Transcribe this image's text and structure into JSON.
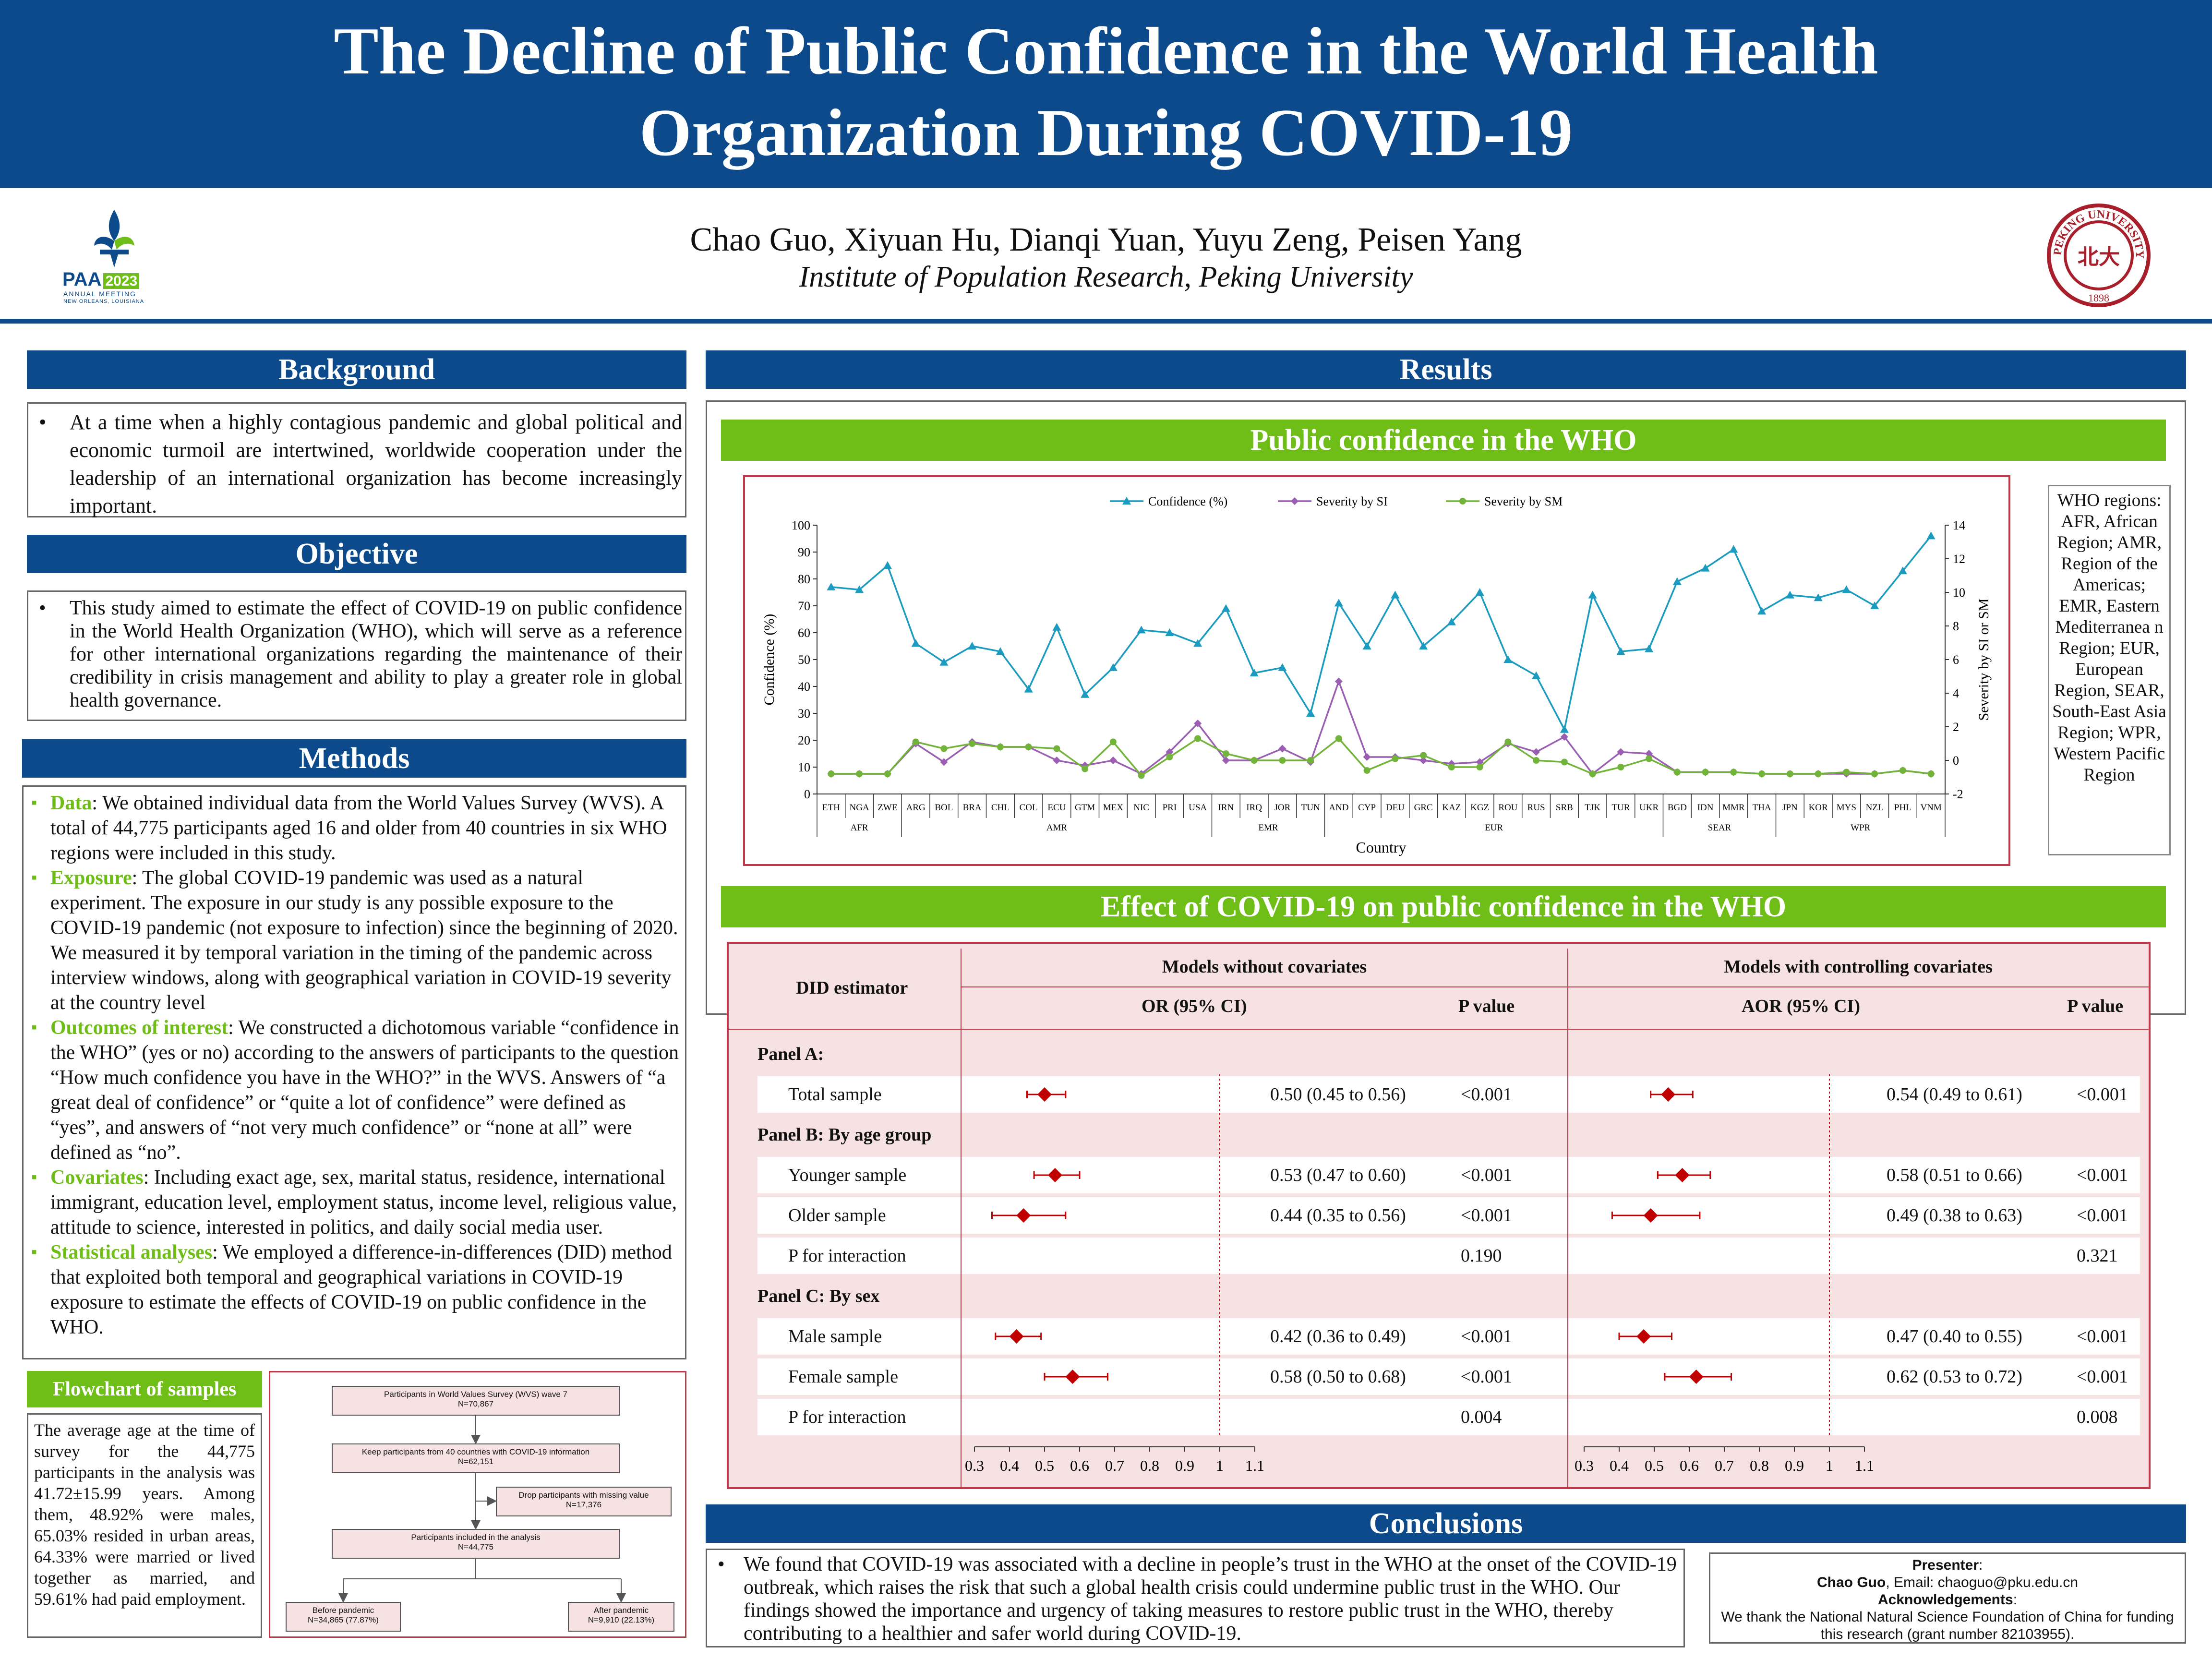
{
  "header": {
    "title_line1": "The Decline of Public Confidence in the World Health",
    "title_line2": "Organization During COVID-19",
    "authors": "Chao Guo, Xiyuan Hu, Dianqi Yuan, Yuyu Zeng, Peisen Yang",
    "affiliation": "Institute of Population Research, Peking University",
    "left_logo": {
      "line1": "PAA",
      "year": "2023",
      "line2": "ANNUAL MEETING",
      "line3": "NEW ORLEANS, LOUISIANA"
    },
    "right_logo": {
      "text": "PEKING UNIVERSITY",
      "year": "1898",
      "glyph": "北大"
    }
  },
  "background": {
    "heading": "Background",
    "text": "At a time when a highly contagious pandemic and global political and economic turmoil are intertwined, worldwide cooperation under the leadership of an international organization has become increasingly important."
  },
  "objective": {
    "heading": "Objective",
    "text": "This study aimed to estimate the effect of COVID-19 on public confidence in the World Health Organization (WHO), which will serve as a reference for other international organizations regarding the maintenance of their credibility in crisis management and ability to play a greater role in global health governance."
  },
  "methods": {
    "heading": "Methods",
    "items": [
      {
        "label": "Data",
        "text": ": We obtained individual data from the World Values Survey (WVS). A total of 44,775 participants aged 16 and older from 40 countries in six WHO regions were included in this study."
      },
      {
        "label": "Exposure",
        "text": ": The global COVID-19 pandemic was used as a natural experiment. The exposure in our study is any possible exposure to the COVID-19 pandemic (not exposure to infection) since the beginning of 2020. We measured it by temporal variation in the timing of the pandemic across interview windows, along with geographical variation in COVID-19 severity at the country level"
      },
      {
        "label": "Outcomes of interest",
        "text": ": We constructed a dichotomous variable “confidence in the WHO” (yes or no) according to the answers of participants to the question “How much confidence you have in the WHO?” in the WVS. Answers of “a great deal of confidence” or “quite a lot of confidence” were defined as “yes”, and answers of “not very much confidence” or “none at all” were defined as “no”."
      },
      {
        "label": "Covariates",
        "text": ": Including exact age, sex, marital status, residence, international immigrant, education level, employment status, income level, religious value, attitude to science, interested in politics, and daily social media user."
      },
      {
        "label": "Statistical analyses",
        "text": ": We employed a difference-in-differences (DID) method that exploited both temporal and geographical variations in COVID-19 exposure to estimate the effects of COVID-19 on public confidence in the WHO."
      }
    ]
  },
  "flowchart": {
    "heading": "Flowchart of samples",
    "summary": "The average age at the time of survey for the 44,775 participants in the analysis was 41.72±15.99 years. Among them, 48.92% were males, 65.03% resided in urban areas, 64.33% were married or lived together as married, and 59.61% had paid employment.",
    "box1_a": "Participants in World Values Survey (WVS) wave 7",
    "box1_b": "N=70,867",
    "box2_a": "Keep participants from 40 countries with COVID-19 information",
    "box2_b": "N=62,151",
    "box3_a": "Drop participants with missing value",
    "box3_b": "N=17,376",
    "box4_a": "Participants included in the analysis",
    "box4_b": "N=44,775",
    "box5_a": "Before pandemic",
    "box5_b": "N=34,865 (77.87%)",
    "box6_a": "After pandemic",
    "box6_b": "N=9,910 (22.13%)"
  },
  "results": {
    "heading": "Results",
    "sub1": "Public confidence in the WHO",
    "sub2": "Effect of COVID-19 on public confidence in the WHO",
    "who_regions_note": "WHO regions: AFR, African Region; AMR, Region of the Americas; EMR, Eastern Mediterranea n Region; EUR, European Region, SEAR, South-East Asia Region; WPR, Western Pacific Region"
  },
  "chart_data": {
    "type": "line",
    "xlabel": "Country",
    "ylabel": "Confidence (%)",
    "y2label": "Severity by SI or SM",
    "ylim": [
      0,
      100
    ],
    "y2lim": [
      -2,
      14
    ],
    "yticks": [
      0,
      10,
      20,
      30,
      40,
      50,
      60,
      70,
      80,
      90,
      100
    ],
    "y2ticks": [
      -2,
      0,
      2,
      4,
      6,
      8,
      10,
      12,
      14
    ],
    "legend_position": "top",
    "colors": {
      "confidence": "#1b9bc0",
      "si": "#9a5fb3",
      "sm": "#72b33a"
    },
    "categories": [
      "ETH",
      "NGA",
      "ZWE",
      "ARG",
      "BOL",
      "BRA",
      "CHL",
      "COL",
      "ECU",
      "GTM",
      "MEX",
      "NIC",
      "PRI",
      "USA",
      "IRN",
      "IRQ",
      "JOR",
      "TUN",
      "AND",
      "CYP",
      "DEU",
      "GRC",
      "KAZ",
      "KGZ",
      "ROU",
      "RUS",
      "SRB",
      "TJK",
      "TUR",
      "UKR",
      "BGD",
      "IDN",
      "MMR",
      "THA",
      "JPN",
      "KOR",
      "MYS",
      "NZL",
      "PHL",
      "VNM"
    ],
    "groups": [
      {
        "name": "AFR",
        "count": 3
      },
      {
        "name": "AMR",
        "count": 11
      },
      {
        "name": "EMR",
        "count": 4
      },
      {
        "name": "EUR",
        "count": 12
      },
      {
        "name": "SEAR",
        "count": 4
      },
      {
        "name": "WPR",
        "count": 6
      }
    ],
    "series": [
      {
        "name": "Confidence (%)",
        "axis": "left",
        "values": [
          77,
          76,
          85,
          56,
          49,
          55,
          53,
          39,
          62,
          37,
          47,
          61,
          60,
          56,
          69,
          45,
          47,
          30,
          71,
          55,
          74,
          55,
          64,
          75,
          50,
          44,
          24,
          74,
          53,
          54,
          79,
          84,
          91,
          68,
          74,
          73,
          76,
          70,
          83,
          96
        ]
      },
      {
        "name": "Severity by SI",
        "axis": "right",
        "values": [
          -0.8,
          -0.8,
          -0.8,
          1.0,
          -0.1,
          1.1,
          0.8,
          0.8,
          0.0,
          -0.3,
          0.0,
          -0.8,
          0.5,
          2.2,
          0.0,
          0.0,
          0.7,
          -0.1,
          4.7,
          0.2,
          0.2,
          0.0,
          -0.2,
          -0.1,
          1.0,
          0.5,
          1.4,
          -0.8,
          0.5,
          0.4,
          -0.7,
          -0.7,
          -0.7,
          -0.8,
          -0.8,
          -0.8,
          -0.8,
          -0.8,
          -0.6,
          -0.8
        ]
      },
      {
        "name": "Severity by SM",
        "axis": "right",
        "values": [
          -0.8,
          -0.8,
          -0.8,
          1.1,
          0.7,
          1.0,
          0.8,
          0.8,
          0.7,
          -0.5,
          1.1,
          -0.9,
          0.2,
          1.3,
          0.4,
          0.0,
          0.0,
          0.0,
          1.3,
          -0.6,
          0.1,
          0.3,
          -0.4,
          -0.4,
          1.1,
          0.0,
          -0.1,
          -0.8,
          -0.4,
          0.1,
          -0.7,
          -0.7,
          -0.7,
          -0.8,
          -0.8,
          -0.8,
          -0.7,
          -0.8,
          -0.6,
          -0.8
        ]
      }
    ]
  },
  "did_table": {
    "col_estimator": "DID estimator",
    "group1": "Models without covariates",
    "group2": "Models with controlling covariates",
    "col_or": "OR (95% CI)",
    "col_aor": "AOR (95% CI)",
    "col_p": "P value",
    "axis_ticks": [
      "0.3",
      "0.4",
      "0.5",
      "0.6",
      "0.7",
      "0.8",
      "0.9",
      "1",
      "1.1"
    ],
    "rows": [
      {
        "label": "Panel A:",
        "header": true
      },
      {
        "label": "Total sample",
        "or": 0.5,
        "lo": 0.45,
        "hi": 0.56,
        "or_text": "0.50 (0.45 to 0.56)",
        "p1": "<0.001",
        "aor": 0.54,
        "alo": 0.49,
        "ahi": 0.61,
        "aor_text": "0.54 (0.49 to 0.61)",
        "p2": "<0.001"
      },
      {
        "label": "Panel B: By age group",
        "header": true
      },
      {
        "label": "Younger sample",
        "or": 0.53,
        "lo": 0.47,
        "hi": 0.6,
        "or_text": "0.53 (0.47 to 0.60)",
        "p1": "<0.001",
        "aor": 0.58,
        "alo": 0.51,
        "ahi": 0.66,
        "aor_text": "0.58 (0.51 to 0.66)",
        "p2": "<0.001"
      },
      {
        "label": "Older sample",
        "or": 0.44,
        "lo": 0.35,
        "hi": 0.56,
        "or_text": "0.44 (0.35 to 0.56)",
        "p1": "<0.001",
        "aor": 0.49,
        "alo": 0.38,
        "ahi": 0.63,
        "aor_text": "0.49 (0.38 to 0.63)",
        "p2": "<0.001"
      },
      {
        "label": "P for interaction",
        "p1": "0.190",
        "p2": "0.321"
      },
      {
        "label": "Panel C: By sex",
        "header": true
      },
      {
        "label": "Male sample",
        "or": 0.42,
        "lo": 0.36,
        "hi": 0.49,
        "or_text": "0.42 (0.36 to 0.49)",
        "p1": "<0.001",
        "aor": 0.47,
        "alo": 0.4,
        "ahi": 0.55,
        "aor_text": "0.47 (0.40 to 0.55)",
        "p2": "<0.001"
      },
      {
        "label": "Female sample",
        "or": 0.58,
        "lo": 0.5,
        "hi": 0.68,
        "or_text": "0.58 (0.50 to 0.68)",
        "p1": "<0.001",
        "aor": 0.62,
        "alo": 0.53,
        "ahi": 0.72,
        "aor_text": "0.62 (0.53 to 0.72)",
        "p2": "<0.001"
      },
      {
        "label": "P for interaction",
        "p1": "0.004",
        "p2": "0.008"
      }
    ]
  },
  "conclusions": {
    "heading": "Conclusions",
    "text": "We found that COVID-19 was associated with a decline in people’s trust in the WHO at the onset of the COVID-19 outbreak, which raises the risk that such a global health crisis could undermine public trust in the WHO. Our findings showed the importance and urgency of taking measures to restore public trust in the WHO, thereby contributing to a healthier and safer world during COVID-19."
  },
  "presenter": {
    "label": "Presenter",
    "name": "Chao Guo",
    "email": ", Email: chaoguo@pku.edu.cn",
    "ack_label": "Acknowledgements",
    "ack_text": "We thank the National Natural Science Foundation of China for funding this research (grant number 82103955)."
  }
}
